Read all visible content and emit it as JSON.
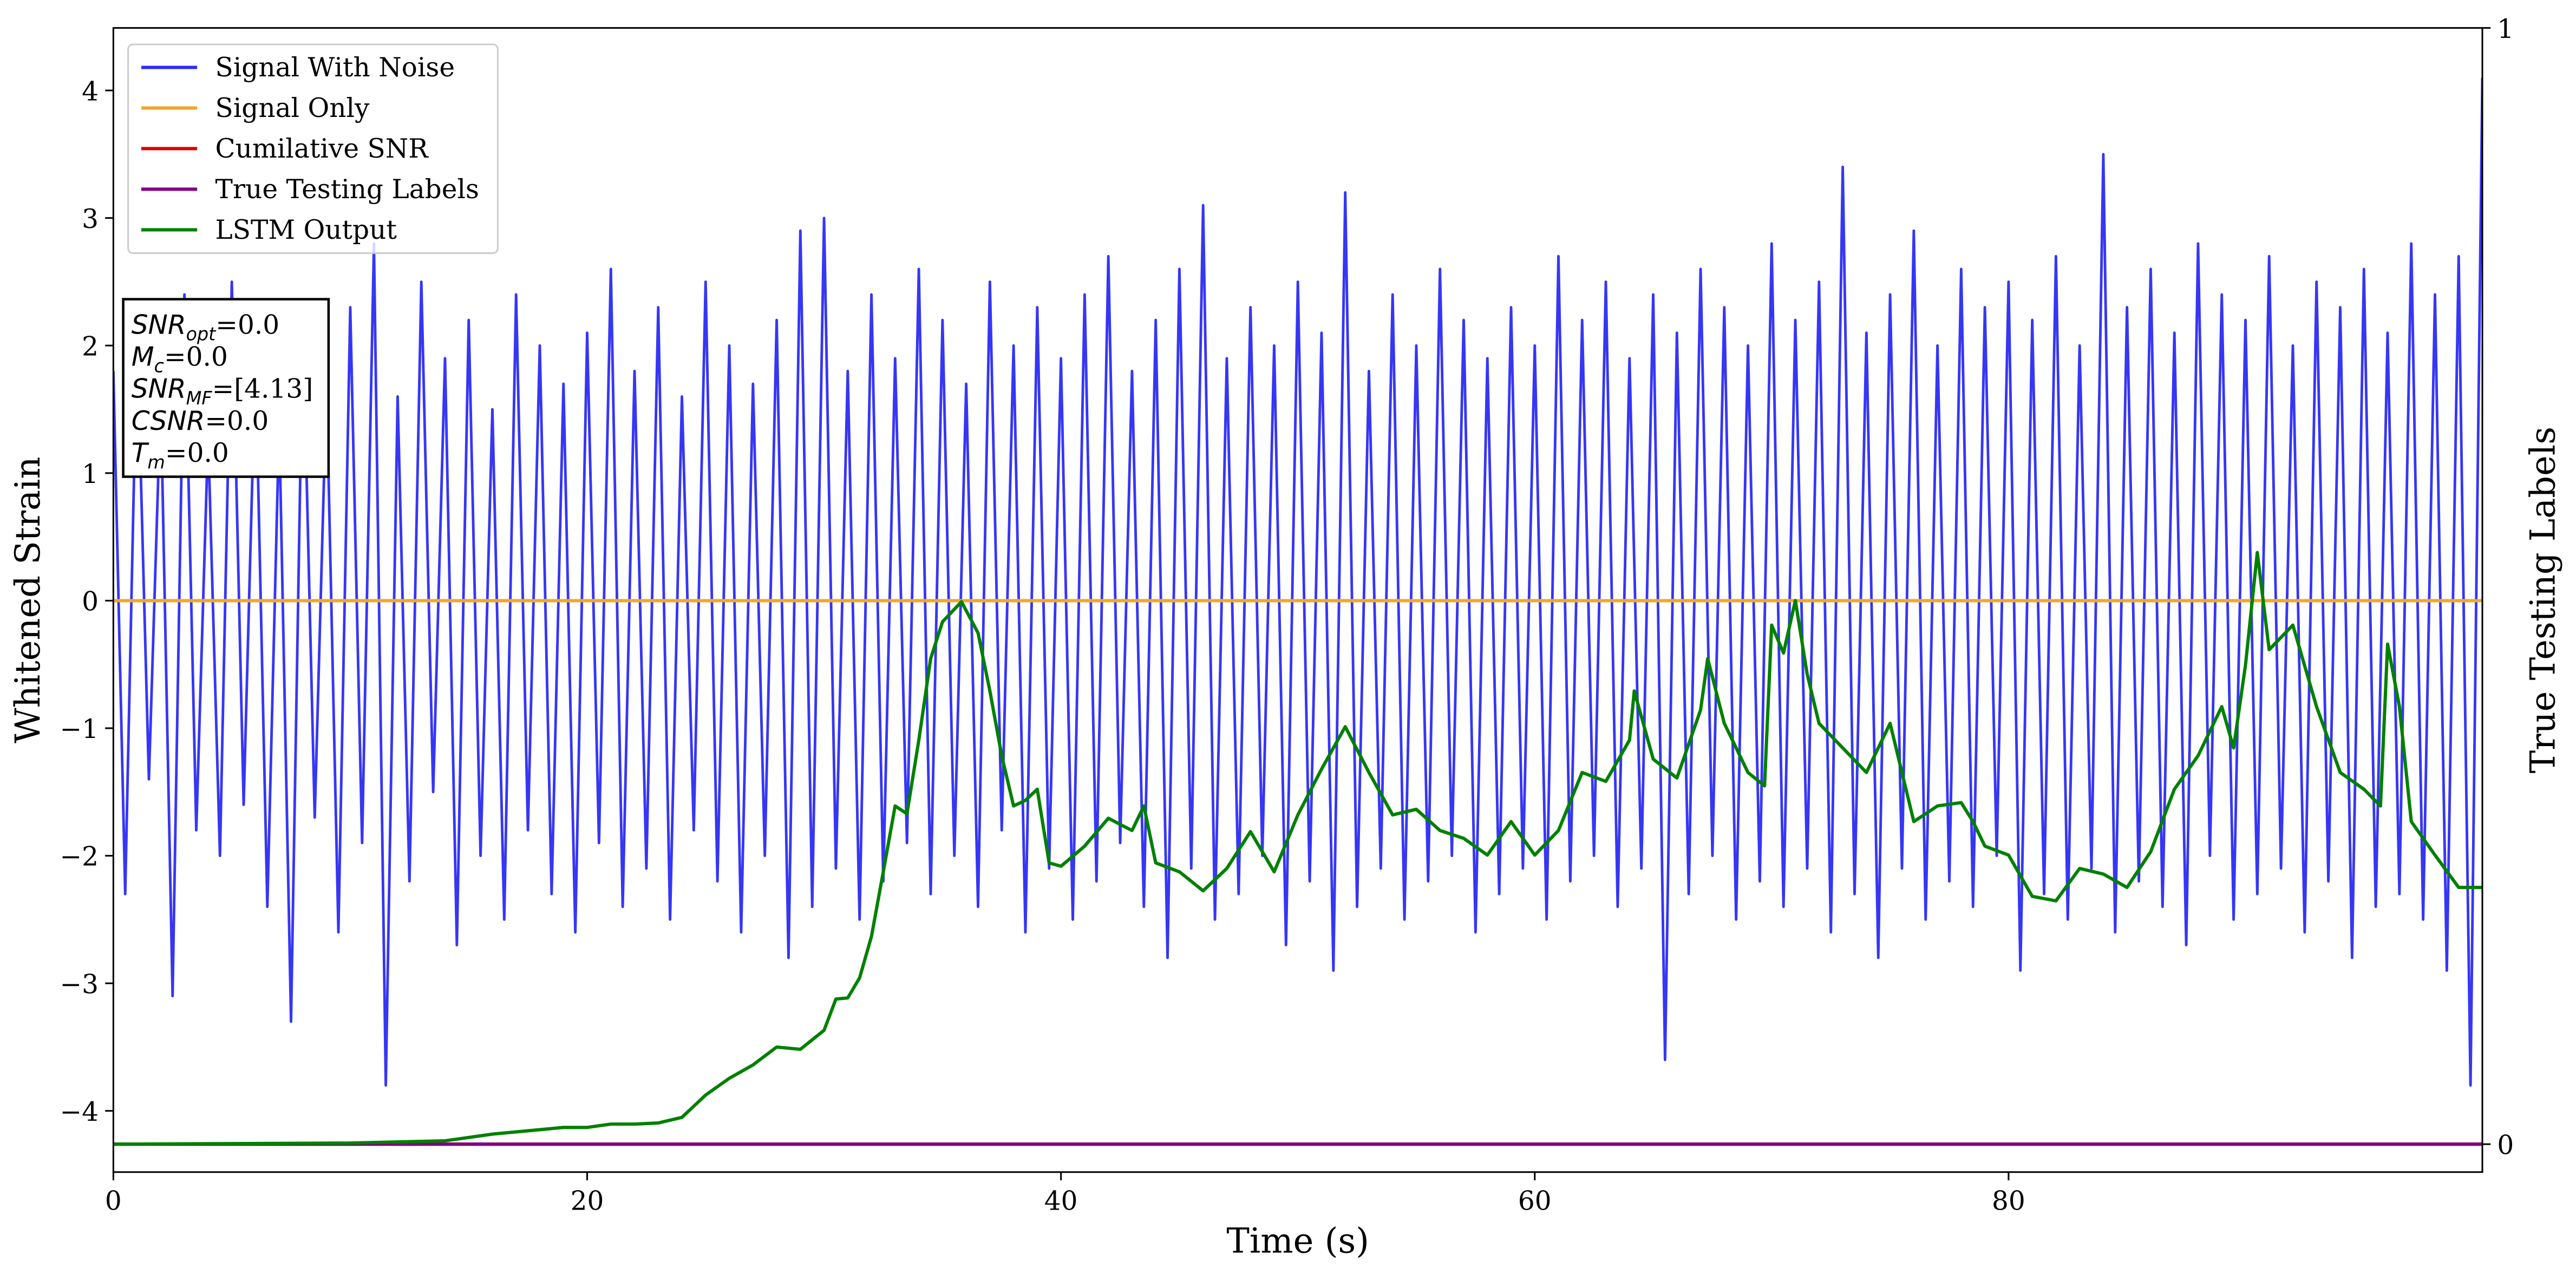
{
  "chart_data": {
    "type": "line",
    "xlabel": "Time (s)",
    "ylabel": "Whitened Strain",
    "y2label": "True Testing Labels",
    "xlim": [
      0,
      100
    ],
    "ylim": [
      -4.48,
      4.49
    ],
    "y2lim": [
      -0.025,
      1
    ],
    "xticks": [
      0,
      20,
      40,
      60,
      80
    ],
    "yticks": [
      -4,
      -3,
      -2,
      -1,
      0,
      1,
      2,
      3,
      4
    ],
    "y2ticks": [
      0,
      1
    ],
    "legend": "upper left",
    "series": [
      {
        "name": "Signal With Noise",
        "color": "#2b2bf5",
        "x": [
          0,
          0.5,
          1,
          1.5,
          2,
          2.5,
          3,
          3.5,
          4,
          4.5,
          5,
          5.5,
          6,
          6.5,
          7,
          7.5,
          8,
          8.5,
          9,
          9.5,
          10,
          10.5,
          11,
          11.5,
          12,
          12.5,
          13,
          13.5,
          14,
          14.5,
          15,
          15.5,
          16,
          16.5,
          17,
          17.5,
          18,
          18.5,
          19,
          19.5,
          20,
          20.5,
          21,
          21.5,
          22,
          22.5,
          23,
          23.5,
          24,
          24.5,
          25,
          25.5,
          26,
          26.5,
          27,
          27.5,
          28,
          28.5,
          29,
          29.5,
          30,
          30.5,
          31,
          31.5,
          32,
          32.5,
          33,
          33.5,
          34,
          34.5,
          35,
          35.5,
          36,
          36.5,
          37,
          37.5,
          38,
          38.5,
          39,
          39.5,
          40,
          40.5,
          41,
          41.5,
          42,
          42.5,
          43,
          43.5,
          44,
          44.5,
          45,
          45.5,
          46,
          46.5,
          47,
          47.5,
          48,
          48.5,
          49,
          49.5,
          50,
          50.5,
          51,
          51.5,
          52,
          52.5,
          53,
          53.5,
          54,
          54.5,
          55,
          55.5,
          56,
          56.5,
          57,
          57.5,
          58,
          58.5,
          59,
          59.5,
          60,
          60.5,
          61,
          61.5,
          62,
          62.5,
          63,
          63.5,
          64,
          64.5,
          65,
          65.5,
          66,
          66.5,
          67,
          67.5,
          68,
          68.5,
          69,
          69.5,
          70,
          70.5,
          71,
          71.5,
          72,
          72.5,
          73,
          73.5,
          74,
          74.5,
          75,
          75.5,
          76,
          76.5,
          77,
          77.5,
          78,
          78.5,
          79,
          79.5,
          80,
          80.5,
          81,
          81.5,
          82,
          82.5,
          83,
          83.5,
          84,
          84.5,
          85,
          85.5,
          86,
          86.5,
          87,
          87.5,
          88,
          88.5,
          89,
          89.5,
          90,
          90.5,
          91,
          91.5,
          92,
          92.5,
          93,
          93.5,
          94,
          94.5,
          95,
          95.5,
          96,
          96.5,
          97,
          97.5,
          98,
          98.5,
          99,
          99.5,
          100
        ],
        "values": [
          1.8,
          -2.3,
          2.1,
          -1.4,
          1.6,
          -3.1,
          2.4,
          -1.8,
          1.3,
          -2.0,
          2.5,
          -1.6,
          1.9,
          -2.4,
          1.4,
          -3.3,
          2.2,
          -1.7,
          1.7,
          -2.6,
          2.3,
          -1.9,
          2.8,
          -3.8,
          1.6,
          -2.2,
          2.5,
          -1.5,
          1.9,
          -2.7,
          2.2,
          -2.0,
          1.5,
          -2.5,
          2.4,
          -1.8,
          2.0,
          -2.3,
          1.7,
          -2.6,
          2.1,
          -1.9,
          2.6,
          -2.4,
          1.8,
          -2.1,
          2.3,
          -2.5,
          1.6,
          -1.8,
          2.5,
          -2.2,
          2.0,
          -2.6,
          1.7,
          -2.0,
          2.2,
          -2.8,
          2.9,
          -2.4,
          3.0,
          -2.1,
          1.8,
          -2.5,
          2.4,
          -2.2,
          1.9,
          -1.9,
          2.6,
          -2.3,
          2.2,
          -2.0,
          1.7,
          -2.4,
          2.5,
          -1.8,
          2.0,
          -2.6,
          2.3,
          -2.1,
          1.9,
          -2.5,
          2.4,
          -2.2,
          2.7,
          -1.9,
          1.8,
          -2.4,
          2.2,
          -2.8,
          2.6,
          -2.1,
          3.1,
          -2.5,
          1.9,
          -2.3,
          2.3,
          -2.0,
          2.0,
          -2.7,
          2.5,
          -2.2,
          2.1,
          -2.9,
          3.2,
          -2.4,
          1.8,
          -2.1,
          2.4,
          -2.5,
          2.0,
          -2.2,
          2.6,
          -2.0,
          2.2,
          -2.6,
          1.9,
          -2.3,
          2.3,
          -2.1,
          2.0,
          -2.5,
          2.7,
          -2.2,
          2.2,
          -2.0,
          2.5,
          -2.4,
          1.9,
          -2.1,
          2.4,
          -3.6,
          2.1,
          -2.3,
          2.6,
          -2.0,
          2.3,
          -2.5,
          2.0,
          -2.2,
          2.8,
          -2.4,
          2.2,
          -2.1,
          2.5,
          -2.6,
          3.4,
          -2.3,
          2.1,
          -2.8,
          2.4,
          -2.1,
          2.9,
          -2.5,
          2.0,
          -2.2,
          2.6,
          -2.4,
          2.3,
          -2.0,
          2.5,
          -2.9,
          2.2,
          -2.3,
          2.7,
          -2.5,
          2.0,
          -2.1,
          3.5,
          -2.6,
          2.3,
          -2.2,
          2.6,
          -2.4,
          2.1,
          -2.7,
          2.8,
          -2.0,
          2.4,
          -2.5,
          2.2,
          -2.3,
          2.7,
          -2.1,
          2.0,
          -2.6,
          2.5,
          -2.2,
          2.3,
          -2.8,
          2.6,
          -2.4,
          2.1,
          -2.3,
          2.8,
          -2.5,
          2.4,
          -2.9,
          2.7,
          -3.8,
          4.1
        ]
      },
      {
        "name": "Signal Only",
        "color": "#f5a623",
        "x": [
          0,
          100
        ],
        "values": [
          0,
          0
        ]
      },
      {
        "name": "Cumilative SNR",
        "color": "#e00000",
        "axis": "y2",
        "x": [
          0,
          100
        ],
        "values": [
          0,
          0
        ]
      },
      {
        "name": "True Testing Labels",
        "color": "#800080",
        "axis": "y2",
        "x": [
          0,
          100
        ],
        "values": [
          0,
          0
        ]
      },
      {
        "name": "LSTM Output",
        "color": "#008000",
        "axis": "y2",
        "x": [
          0,
          10,
          14,
          16,
          18,
          19,
          20,
          21,
          22,
          23,
          24,
          25,
          26,
          27,
          28,
          29,
          30,
          30.5,
          31,
          31.5,
          32,
          32.5,
          33,
          33.5,
          34,
          34.5,
          35,
          35.8,
          36.5,
          37,
          37.5,
          38,
          38.5,
          39,
          39.5,
          40,
          41,
          42,
          43,
          43.5,
          44,
          45,
          46,
          47,
          48,
          49,
          50,
          51,
          52,
          53,
          54,
          55,
          56,
          57,
          58,
          59,
          60,
          61,
          62,
          63,
          64,
          64.2,
          65,
          66,
          67,
          67.3,
          68,
          69,
          69.7,
          70,
          70.5,
          71,
          71.5,
          72,
          73,
          74,
          75,
          76,
          77,
          78,
          78.5,
          79,
          80,
          81,
          82,
          83,
          84,
          85,
          86,
          87,
          88,
          89,
          89.5,
          90,
          90.5,
          91,
          92,
          93,
          94,
          95,
          95.7,
          96,
          96.5,
          97,
          98,
          99,
          100
        ],
        "values": [
          0,
          0.001,
          0.003,
          0.009,
          0.013,
          0.015,
          0.015,
          0.018,
          0.018,
          0.019,
          0.024,
          0.044,
          0.059,
          0.071,
          0.087,
          0.085,
          0.102,
          0.13,
          0.131,
          0.149,
          0.186,
          0.244,
          0.303,
          0.296,
          0.362,
          0.435,
          0.468,
          0.486,
          0.458,
          0.406,
          0.348,
          0.303,
          0.308,
          0.318,
          0.252,
          0.249,
          0.267,
          0.292,
          0.281,
          0.303,
          0.252,
          0.244,
          0.227,
          0.247,
          0.28,
          0.244,
          0.295,
          0.336,
          0.374,
          0.333,
          0.295,
          0.3,
          0.281,
          0.274,
          0.259,
          0.289,
          0.259,
          0.281,
          0.333,
          0.325,
          0.362,
          0.406,
          0.345,
          0.328,
          0.389,
          0.435,
          0.377,
          0.333,
          0.321,
          0.465,
          0.44,
          0.487,
          0.421,
          0.377,
          0.355,
          0.333,
          0.377,
          0.289,
          0.303,
          0.306,
          0.289,
          0.267,
          0.259,
          0.222,
          0.218,
          0.247,
          0.242,
          0.23,
          0.262,
          0.318,
          0.348,
          0.392,
          0.355,
          0.429,
          0.53,
          0.443,
          0.465,
          0.392,
          0.333,
          0.318,
          0.303,
          0.448,
          0.392,
          0.289,
          0.259,
          0.23,
          0.23
        ]
      }
    ],
    "annotations": [
      {
        "symbol": "SNR",
        "sub": "opt",
        "text": "=0.0"
      },
      {
        "symbol": "M",
        "sub": "c",
        "text": "=0.0"
      },
      {
        "symbol": "SNR",
        "sub": "MF",
        "text": "=[4.13]"
      },
      {
        "symbol": "CSNR",
        "text": "=0.0"
      },
      {
        "symbol": "T",
        "sub": "m",
        "text": "=0.0"
      }
    ]
  }
}
